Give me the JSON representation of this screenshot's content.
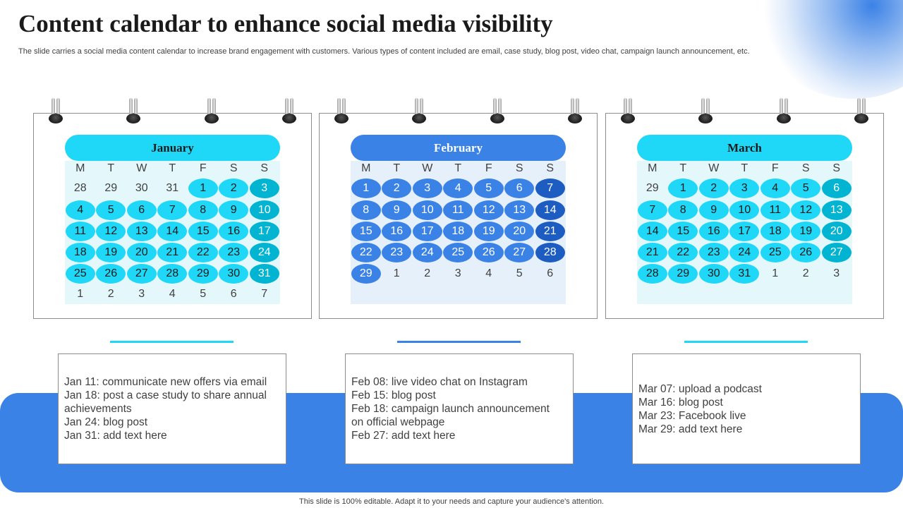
{
  "title": "Content calendar to enhance social media visibility",
  "subtitle": "The slide carries a social media content calendar to increase brand engagement with customers. Various types of content included are email, case study, blog post, video chat,  campaign launch announcement, etc.",
  "footer": "This slide is 100% editable. Adapt it to your needs and capture your audience's attention.",
  "colors": {
    "accent_light": "#1fd8f8",
    "accent_dark": "#00b4d2",
    "feb_accent": "#3b82e6",
    "feb_dark": "#1d5cc0",
    "band": "#3b82e6",
    "grid_light": "#e4f8fc",
    "grid_feb": "#e6f0fb"
  },
  "weekdays": [
    "M",
    "T",
    "W",
    "T",
    "F",
    "S",
    "S"
  ],
  "calendars": [
    {
      "month": "January",
      "weeks": [
        [
          "28",
          "29",
          "30",
          "31",
          "1",
          "2",
          "3"
        ],
        [
          "4",
          "5",
          "6",
          "7",
          "8",
          "9",
          "10"
        ],
        [
          "11",
          "12",
          "13",
          "14",
          "15",
          "16",
          "17"
        ],
        [
          "18",
          "19",
          "20",
          "21",
          "22",
          "23",
          "24"
        ],
        [
          "25",
          "26",
          "27",
          "28",
          "29",
          "30",
          "31"
        ],
        [
          "1",
          "2",
          "3",
          "4",
          "5",
          "6",
          "7"
        ]
      ]
    },
    {
      "month": "February",
      "weeks": [
        [
          "1",
          "2",
          "3",
          "4",
          "5",
          "6",
          "7"
        ],
        [
          "8",
          "9",
          "10",
          "11",
          "12",
          "13",
          "14"
        ],
        [
          "15",
          "16",
          "17",
          "18",
          "19",
          "20",
          "21"
        ],
        [
          "22",
          "23",
          "24",
          "25",
          "26",
          "27",
          "28"
        ],
        [
          "29",
          "1",
          "2",
          "3",
          "4",
          "5",
          "6"
        ]
      ]
    },
    {
      "month": "March",
      "weeks": [
        [
          "29",
          "1",
          "2",
          "3",
          "4",
          "5",
          "6"
        ],
        [
          "7",
          "8",
          "9",
          "10",
          "11",
          "12",
          "13"
        ],
        [
          "14",
          "15",
          "16",
          "17",
          "18",
          "19",
          "20"
        ],
        [
          "21",
          "22",
          "23",
          "24",
          "25",
          "26",
          "27"
        ],
        [
          "28",
          "29",
          "30",
          "31",
          "1",
          "2",
          "3"
        ]
      ]
    }
  ],
  "notes": [
    {
      "lines": [
        "Jan 11: communicate new offers via email",
        "Jan 18: post a case study to share annual",
        "achievements",
        "Jan 24: blog post",
        "Jan 31: add text here"
      ]
    },
    {
      "lines": [
        "Feb 08: live video chat on Instagram",
        "Feb 15: blog post",
        "Feb 18: campaign launch announcement",
        "on official webpage",
        "Feb 27: add text here"
      ]
    },
    {
      "lines": [
        "Mar 07: upload a podcast",
        "Mar 16: blog post",
        "Mar 23: Facebook live",
        "Mar 29: add text here"
      ]
    }
  ]
}
